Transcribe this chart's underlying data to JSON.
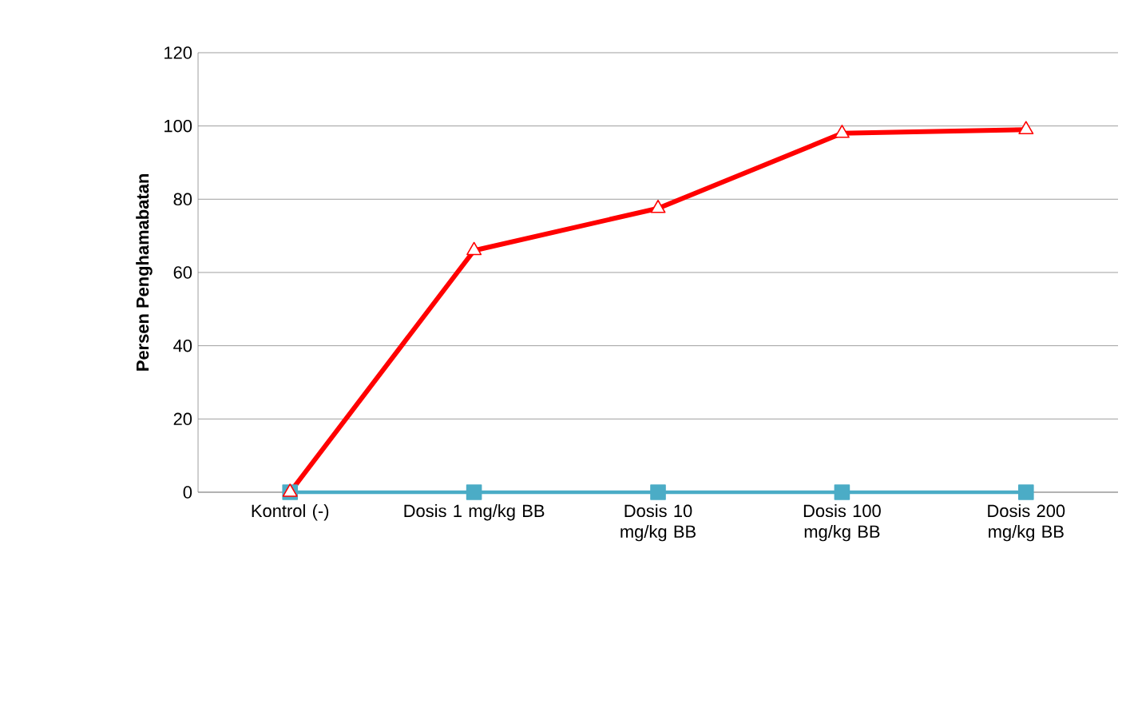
{
  "chart_data": {
    "type": "line",
    "ylabel": "Persen Penghamabatan",
    "categories": [
      "Kontrol (-)",
      "Dosis 1 mg/kg BB",
      "Dosis 10 mg/kg BB",
      "Dosis 100 mg/kg BB",
      "Dosis 200 mg/kg BB"
    ],
    "series": [
      {
        "color": "#4bacc6",
        "marker": "square",
        "values": [
          0,
          0,
          0,
          0,
          0
        ]
      },
      {
        "color": "#ff0000",
        "marker": "triangle",
        "values": [
          0,
          66,
          77.5,
          98,
          99
        ]
      }
    ],
    "ylim": [
      0,
      120
    ],
    "yticks": [
      0,
      20,
      40,
      60,
      80,
      100,
      120
    ],
    "grid": "y"
  }
}
